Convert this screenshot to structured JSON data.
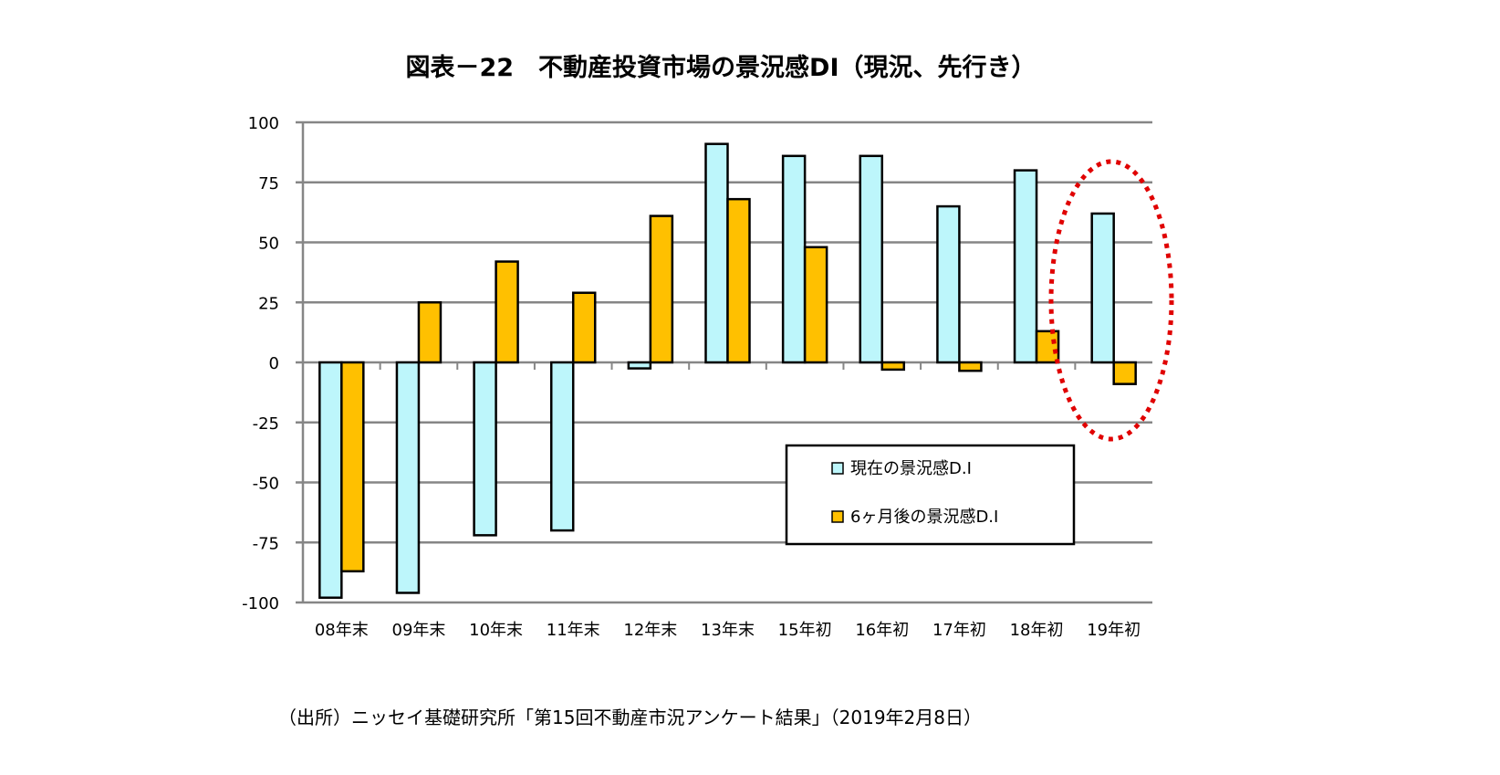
{
  "chart_data": {
    "type": "bar",
    "title": "図表－22　不動産投資市場の景況感DI（現況、先行き）",
    "xlabel": "",
    "ylabel": "",
    "ylim": [
      -100,
      100
    ],
    "yticks": [
      100,
      75,
      50,
      25,
      0,
      -25,
      -50,
      -75,
      -100
    ],
    "grid": true,
    "legend_position": "bottom-right inside plot",
    "categories": [
      "08年末",
      "09年末",
      "10年末",
      "11年末",
      "12年末",
      "13年末",
      "15年初",
      "16年初",
      "17年初",
      "18年初",
      "19年初"
    ],
    "series": [
      {
        "name": "現在の景況感D.I",
        "color": "#BDF6FB",
        "values": [
          -98,
          -96,
          -72,
          -70,
          -2.5,
          91,
          86,
          86,
          65,
          80,
          62
        ]
      },
      {
        "name": "6ヶ月後の景況感D.I",
        "color": "#FFC000",
        "values": [
          -87,
          25,
          42,
          29,
          61,
          68,
          48,
          -3,
          -3.5,
          13,
          -9
        ]
      }
    ],
    "annotation": {
      "type": "dotted-ellipse",
      "color": "#E00000",
      "highlights_category": "19年初"
    }
  },
  "note": "（出所）ニッセイ基礎研究所「第15回不動産市況アンケート結果」（2019年2月8日）"
}
